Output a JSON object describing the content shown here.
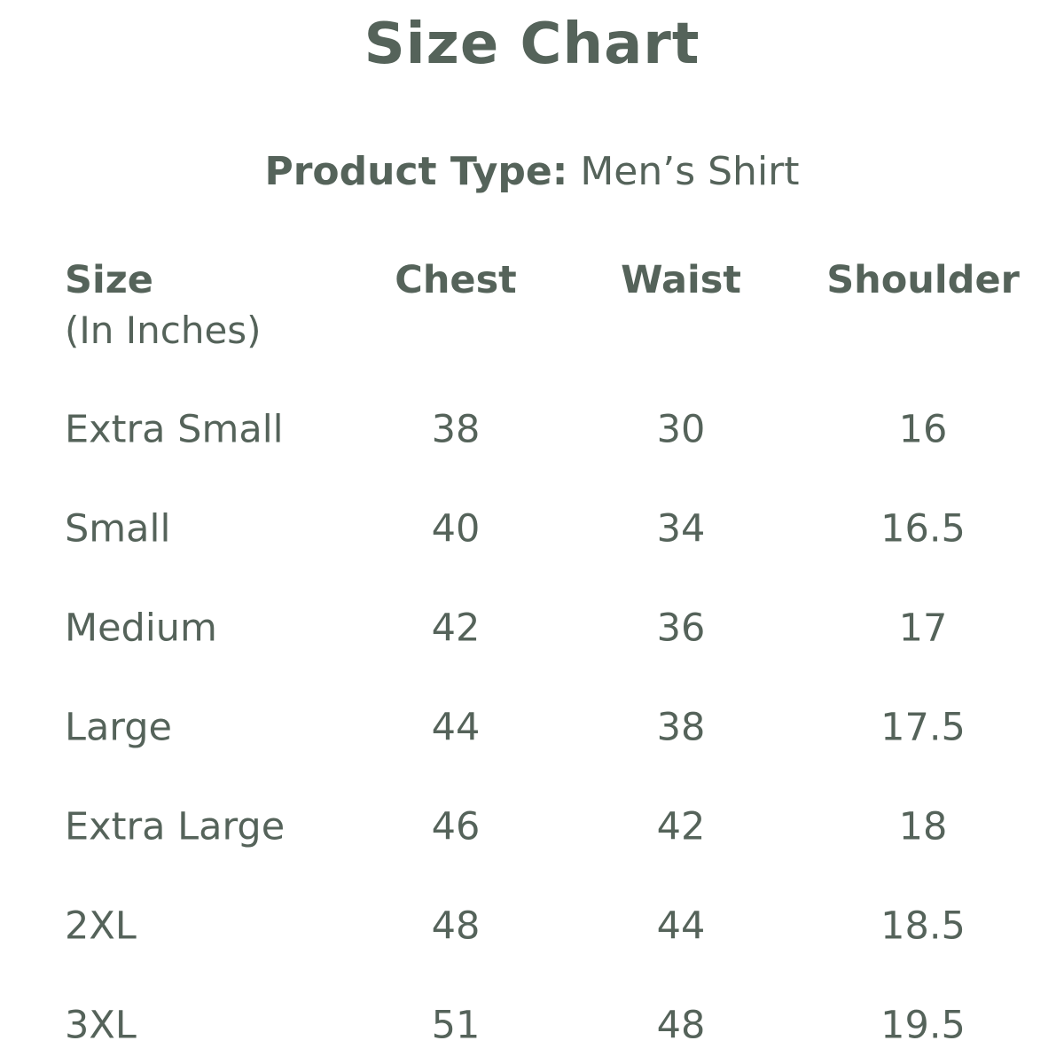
{
  "title": "Size Chart",
  "product_type": {
    "label": "Product Type:",
    "value": "Men’s Shirt"
  },
  "text_color": "#55635a",
  "table": {
    "headers": [
      "Size",
      "Chest",
      "Waist",
      "Shoulder"
    ],
    "size_unit_note": "(In Inches)",
    "rows": [
      [
        "Extra Small",
        "38",
        "30",
        "16"
      ],
      [
        "Small",
        "40",
        "34",
        "16.5"
      ],
      [
        "Medium",
        "42",
        "36",
        "17"
      ],
      [
        "Large",
        "44",
        "38",
        "17.5"
      ],
      [
        "Extra Large",
        "46",
        "42",
        "18"
      ],
      [
        "2XL",
        "48",
        "44",
        "18.5"
      ],
      [
        "3XL",
        "51",
        "48",
        "19.5"
      ]
    ]
  }
}
